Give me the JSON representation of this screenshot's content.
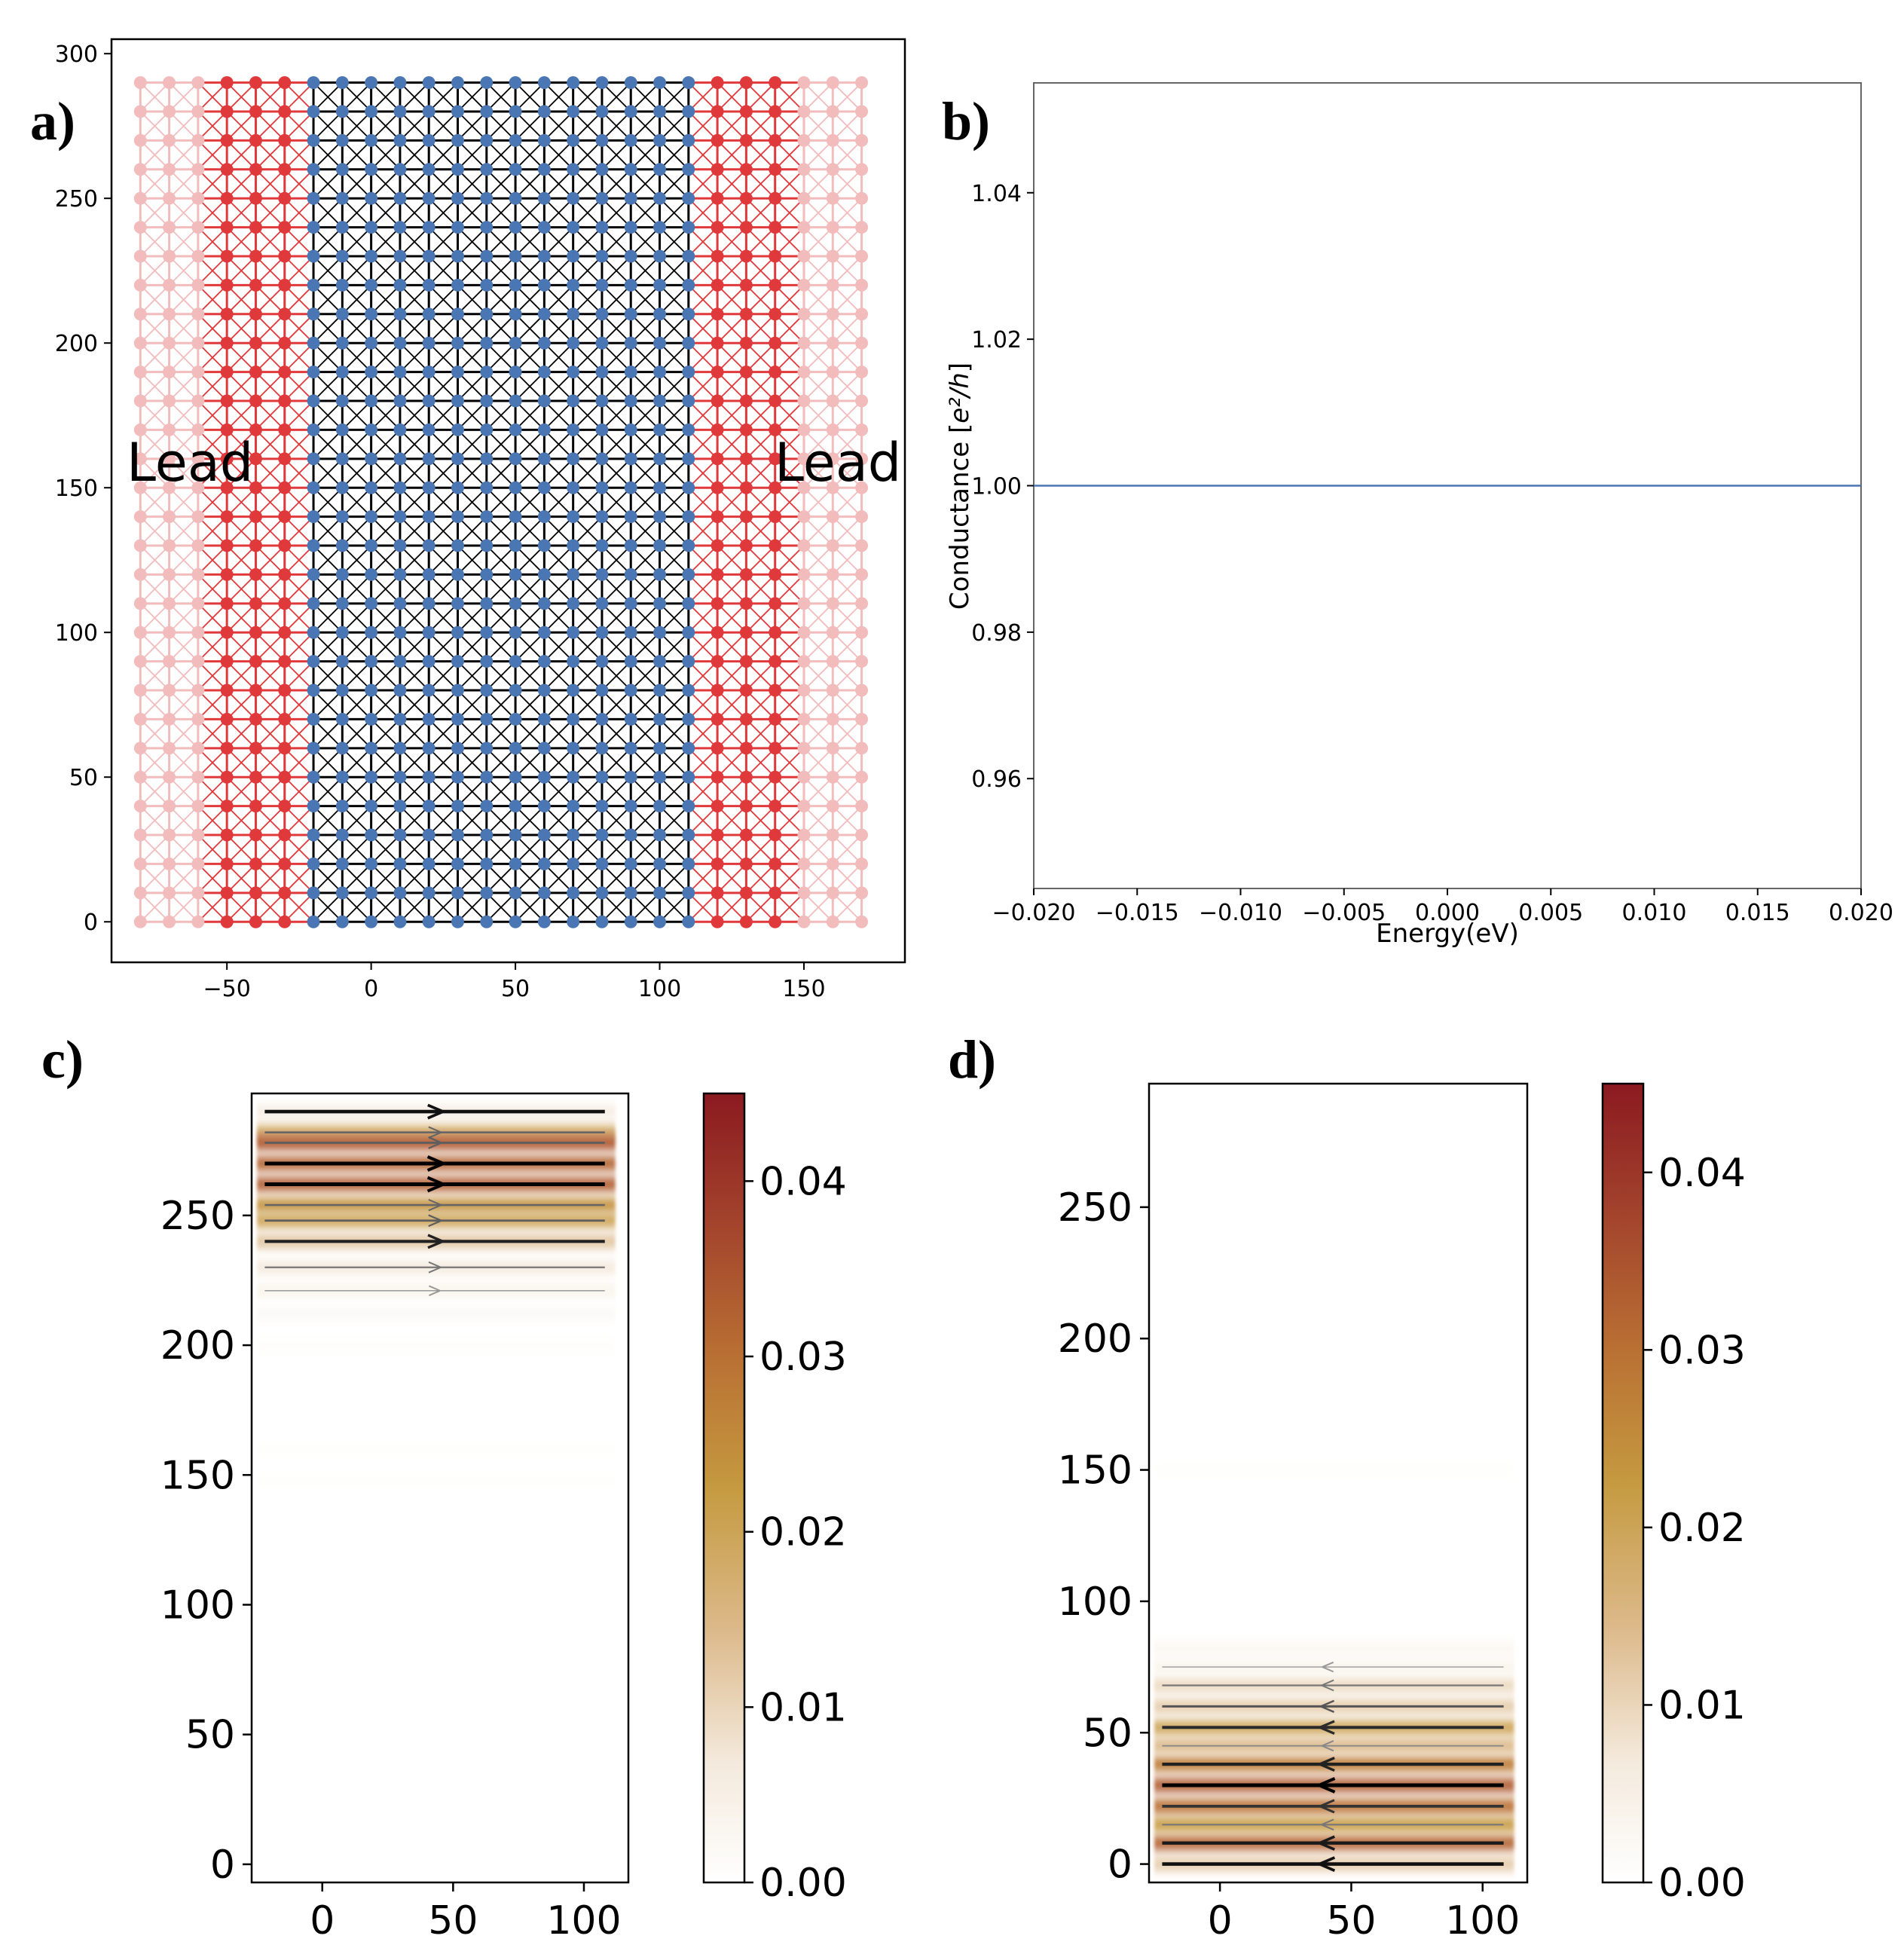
{
  "panel_labels": [
    "a)",
    "b)",
    "c)",
    "d)"
  ],
  "chart_data": [
    {
      "id": "a",
      "type": "scatter",
      "title": "",
      "xlabel": "",
      "ylabel": "",
      "xlim": [
        -90,
        185
      ],
      "ylim": [
        -14,
        305
      ],
      "xticks": [
        -50,
        0,
        50,
        100,
        150
      ],
      "xtick_labels": [
        "−50",
        "0",
        "50",
        "100",
        "150"
      ],
      "yticks": [
        0,
        50,
        100,
        150,
        200,
        250,
        300
      ],
      "ytick_labels": [
        "0",
        "50",
        "100",
        "150",
        "200",
        "250",
        "300"
      ],
      "annotations": [
        "Lead",
        "Lead"
      ],
      "lattice": {
        "x_step": 10,
        "y_step": 10,
        "y_range": [
          0,
          290
        ],
        "colors": {
          "lead_outer": "#f2bcbc",
          "lead_inner": "#e0393b",
          "scattering_sites": "#4a76b4",
          "scattering_bonds": "#000000"
        },
        "regions": [
          {
            "name": "lead-left-outer",
            "x_range": [
              -80,
              -60
            ],
            "color": "#f2bcbc"
          },
          {
            "name": "lead-left-inner",
            "x_range": [
              -50,
              -30
            ],
            "color": "#e0393b"
          },
          {
            "name": "scattering-region",
            "x_range": [
              -20,
              110
            ],
            "color": "#4a76b4"
          },
          {
            "name": "lead-right-inner",
            "x_range": [
              120,
              140
            ],
            "color": "#e0393b"
          },
          {
            "name": "lead-right-outer",
            "x_range": [
              150,
              170
            ],
            "color": "#f2bcbc"
          }
        ]
      }
    },
    {
      "id": "b",
      "type": "line",
      "title": "",
      "xlabel": "Energy(eV)",
      "ylabel": "Conductance [",
      "ylabel_unit": "e²/h",
      "ylabel_end": "]",
      "xlim": [
        -0.02,
        0.02
      ],
      "ylim": [
        0.945,
        1.055
      ],
      "xticks": [
        -0.02,
        -0.015,
        -0.01,
        -0.005,
        0.0,
        0.005,
        0.01,
        0.015,
        0.02
      ],
      "xtick_labels": [
        "−0.020",
        "−0.015",
        "−0.010",
        "−0.005",
        "0.000",
        "0.005",
        "0.010",
        "0.015",
        "0.020"
      ],
      "yticks": [
        0.96,
        0.98,
        1.0,
        1.02,
        1.04
      ],
      "ytick_labels": [
        "0.96",
        "0.98",
        "1.00",
        "1.02",
        "1.04"
      ],
      "series": [
        {
          "name": "conductance",
          "x": [
            -0.02,
            0.02
          ],
          "y": [
            1.0,
            1.0
          ],
          "color": "#4a76b4"
        }
      ]
    },
    {
      "id": "c",
      "type": "heatmap",
      "title": "",
      "xlabel": "",
      "ylabel": "",
      "xlim": [
        -27,
        117
      ],
      "ylim": [
        -7,
        297
      ],
      "xticks": [
        0,
        50,
        100
      ],
      "xtick_labels": [
        "0",
        "50",
        "100"
      ],
      "yticks": [
        0,
        50,
        100,
        150,
        200,
        250
      ],
      "ytick_labels": [
        "0",
        "50",
        "100",
        "150",
        "200",
        "250"
      ],
      "colorbar": {
        "min": 0.0,
        "max": 0.045,
        "ticks": [
          0.0,
          0.01,
          0.02,
          0.03,
          0.04
        ],
        "tick_labels": [
          "0.00",
          "0.01",
          "0.02",
          "0.03",
          "0.04"
        ],
        "colormap": [
          "#ffffff",
          "#f4eadd",
          "#dcb98a",
          "#c59a40",
          "#b96f33",
          "#a2422c",
          "#8b1a20"
        ]
      },
      "current_direction": "right",
      "rows": [
        {
          "y": 290,
          "v": 0.006,
          "arrow": 0.9
        },
        {
          "y": 282,
          "v": 0.018,
          "arrow": 0.4
        },
        {
          "y": 278,
          "v": 0.034,
          "arrow": 0.45
        },
        {
          "y": 270,
          "v": 0.032,
          "arrow": 1.0
        },
        {
          "y": 262,
          "v": 0.033,
          "arrow": 1.0
        },
        {
          "y": 254,
          "v": 0.024,
          "arrow": 0.4
        },
        {
          "y": 248,
          "v": 0.02,
          "arrow": 0.45
        },
        {
          "y": 240,
          "v": 0.013,
          "arrow": 0.8
        },
        {
          "y": 230,
          "v": 0.007,
          "arrow": 0.3
        },
        {
          "y": 221,
          "v": 0.004,
          "arrow": 0.1
        },
        {
          "y": 212,
          "v": 0.002,
          "arrow": 0.0
        },
        {
          "y": 200,
          "v": 0.0008,
          "arrow": 0.0
        },
        {
          "y": 160,
          "v": 0.0005,
          "arrow": 0.0
        },
        {
          "y": 148,
          "v": 0.0004,
          "arrow": 0.0
        }
      ]
    },
    {
      "id": "d",
      "type": "heatmap",
      "title": "",
      "xlabel": "",
      "ylabel": "",
      "xlim": [
        -27,
        117
      ],
      "ylim": [
        -7,
        297
      ],
      "xticks": [
        0,
        50,
        100
      ],
      "xtick_labels": [
        "0",
        "50",
        "100"
      ],
      "yticks": [
        0,
        50,
        100,
        150,
        200,
        250
      ],
      "ytick_labels": [
        "0",
        "50",
        "100",
        "150",
        "200",
        "250"
      ],
      "colorbar": {
        "min": 0.0,
        "max": 0.045,
        "ticks": [
          0.0,
          0.01,
          0.02,
          0.03,
          0.04
        ],
        "tick_labels": [
          "0.00",
          "0.01",
          "0.02",
          "0.03",
          "0.04"
        ],
        "colormap": [
          "#ffffff",
          "#f4eadd",
          "#dcb98a",
          "#c59a40",
          "#b96f33",
          "#a2422c",
          "#8b1a20"
        ]
      },
      "current_direction": "left",
      "rows": [
        {
          "y": 0,
          "v": 0.012,
          "arrow": 0.9
        },
        {
          "y": 8,
          "v": 0.032,
          "arrow": 0.85
        },
        {
          "y": 15,
          "v": 0.022,
          "arrow": 0.3
        },
        {
          "y": 22,
          "v": 0.03,
          "arrow": 0.7
        },
        {
          "y": 30,
          "v": 0.033,
          "arrow": 1.0
        },
        {
          "y": 38,
          "v": 0.028,
          "arrow": 0.8
        },
        {
          "y": 45,
          "v": 0.015,
          "arrow": 0.2
        },
        {
          "y": 52,
          "v": 0.02,
          "arrow": 0.75
        },
        {
          "y": 60,
          "v": 0.012,
          "arrow": 0.5
        },
        {
          "y": 68,
          "v": 0.01,
          "arrow": 0.3
        },
        {
          "y": 75,
          "v": 0.004,
          "arrow": 0.1
        },
        {
          "y": 82,
          "v": 0.003,
          "arrow": 0.0
        },
        {
          "y": 150,
          "v": 0.0005,
          "arrow": 0.0
        }
      ]
    }
  ]
}
